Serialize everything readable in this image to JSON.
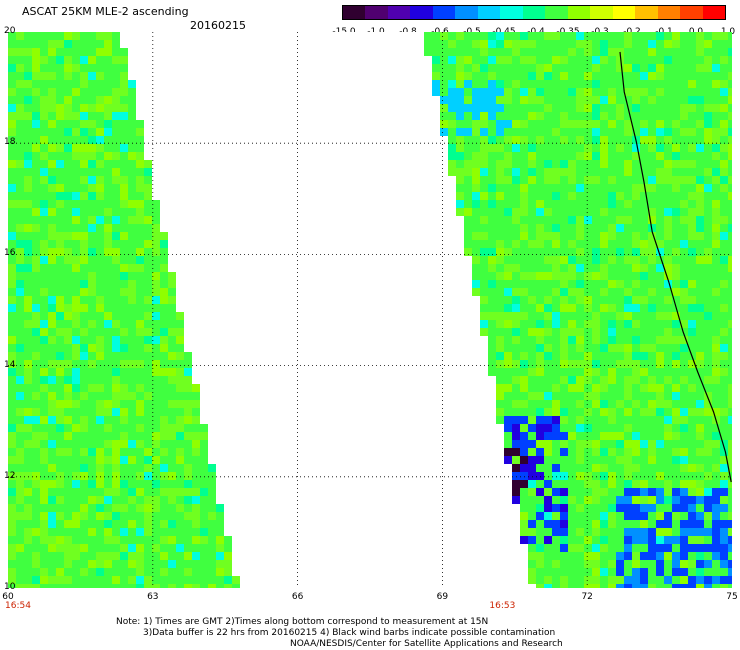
{
  "header": {
    "title": "ASCAT 25KM MLE-2 ascending",
    "date": "20160215"
  },
  "colorbar": {
    "labels": [
      "-15.0",
      "-1.0",
      "-0.8",
      "-0.6",
      "-0.5",
      "-0.45",
      "-0.4",
      "-0.35",
      "-0.3",
      "-0.2",
      "-0.1",
      "0.0",
      "1.0"
    ],
    "colors": [
      "#300030",
      "#500070",
      "#5000b0",
      "#2000e0",
      "#0040ff",
      "#0090ff",
      "#00d0ff",
      "#00ffe0",
      "#00ff90",
      "#40ff40",
      "#90ff00",
      "#d0ff00",
      "#ffff00",
      "#ffc000",
      "#ff8000",
      "#ff4000",
      "#ff0000"
    ]
  },
  "map": {
    "y_labels": [
      "20",
      "18",
      "16",
      "14",
      "12",
      "10"
    ],
    "x_labels": [
      "60",
      "63",
      "66",
      "69",
      "72",
      "75"
    ],
    "times": [
      {
        "x": "60",
        "label": "16:54"
      },
      {
        "x": "69",
        "label": "16:53"
      }
    ]
  },
  "notes": {
    "line1": "Note: 1) Times are GMT 2)Times along bottom correspond to measurement at 15N",
    "line2": "3)Data buffer is 22 hrs from 20160215 4) Black wind barbs indicate possible contamination",
    "line3": "NOAA/NESDIS/Center for Satellite Applications and Research"
  }
}
